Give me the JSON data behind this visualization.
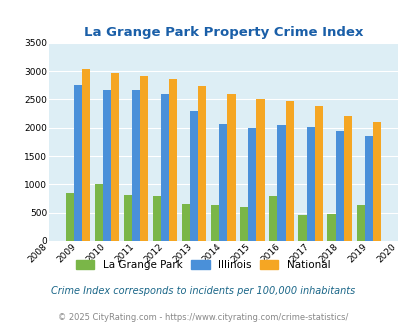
{
  "title": "La Grange Park Property Crime Index",
  "years": [
    2008,
    2009,
    2010,
    2011,
    2012,
    2013,
    2014,
    2015,
    2016,
    2017,
    2018,
    2019,
    2020
  ],
  "la_grange_park": [
    null,
    850,
    1010,
    820,
    800,
    650,
    630,
    600,
    790,
    460,
    480,
    630,
    null
  ],
  "illinois": [
    null,
    2750,
    2670,
    2670,
    2590,
    2290,
    2060,
    2000,
    2050,
    2010,
    1940,
    1850,
    null
  ],
  "national": [
    null,
    3040,
    2960,
    2920,
    2870,
    2730,
    2600,
    2510,
    2480,
    2380,
    2210,
    2110,
    null
  ],
  "ylim": [
    0,
    3500
  ],
  "yticks": [
    0,
    500,
    1000,
    1500,
    2000,
    2500,
    3000,
    3500
  ],
  "color_lagrange": "#7ab648",
  "color_illinois": "#4a90d9",
  "color_national": "#f5a623",
  "bg_color": "#ddeef5",
  "title_color": "#1a5fa8",
  "legend_labels": [
    "La Grange Park",
    "Illinois",
    "National"
  ],
  "footnote1": "Crime Index corresponds to incidents per 100,000 inhabitants",
  "footnote2": "© 2025 CityRating.com - https://www.cityrating.com/crime-statistics/",
  "bar_width": 0.28
}
